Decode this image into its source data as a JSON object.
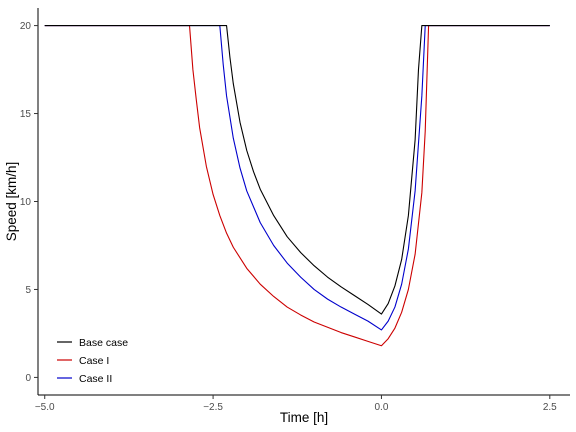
{
  "chart_data": {
    "type": "line",
    "title": "",
    "xlabel": "Time [h]",
    "ylabel": "Speed [km/h]",
    "xlim": [
      -5.1,
      2.8
    ],
    "ylim": [
      -1.0,
      21.0
    ],
    "xticks": [
      -5.0,
      -2.5,
      0.0,
      2.5
    ],
    "xtick_labels": [
      "−5.0",
      "−2.5",
      "0.0",
      "2.5"
    ],
    "yticks": [
      0,
      5,
      10,
      15,
      20
    ],
    "ytick_labels": [
      "0",
      "5",
      "10",
      "15",
      "20"
    ],
    "grid": false,
    "legend": {
      "position": "bottom-left",
      "entries": [
        "Base case",
        "Case I",
        "Case II"
      ]
    },
    "series": [
      {
        "name": "Base case",
        "color": "#000000",
        "x": [
          -5.0,
          -2.3,
          -2.25,
          -2.2,
          -2.1,
          -2.0,
          -1.9,
          -1.8,
          -1.6,
          -1.4,
          -1.2,
          -1.0,
          -0.8,
          -0.6,
          -0.4,
          -0.2,
          0.0,
          0.1,
          0.2,
          0.3,
          0.4,
          0.5,
          0.55,
          0.6,
          2.5
        ],
        "y": [
          20.0,
          20.0,
          18.2,
          16.7,
          14.5,
          12.9,
          11.7,
          10.7,
          9.2,
          8.0,
          7.1,
          6.35,
          5.7,
          5.15,
          4.65,
          4.15,
          3.6,
          4.2,
          5.2,
          6.7,
          9.2,
          13.5,
          17.5,
          20.0,
          20.0
        ]
      },
      {
        "name": "Case I",
        "color": "#cc0000",
        "x": [
          -5.0,
          -2.85,
          -2.8,
          -2.75,
          -2.7,
          -2.6,
          -2.5,
          -2.4,
          -2.3,
          -2.2,
          -2.0,
          -1.8,
          -1.6,
          -1.4,
          -1.2,
          -1.0,
          -0.8,
          -0.6,
          -0.4,
          -0.2,
          0.0,
          0.1,
          0.2,
          0.3,
          0.4,
          0.5,
          0.6,
          0.65,
          0.7,
          2.5
        ],
        "y": [
          20.0,
          20.0,
          17.5,
          15.8,
          14.2,
          12.0,
          10.4,
          9.2,
          8.2,
          7.4,
          6.2,
          5.3,
          4.6,
          4.0,
          3.55,
          3.15,
          2.85,
          2.55,
          2.3,
          2.05,
          1.8,
          2.2,
          2.8,
          3.7,
          5.0,
          7.0,
          10.5,
          14.0,
          20.0,
          20.0
        ]
      },
      {
        "name": "Case II",
        "color": "#0000cc",
        "x": [
          -5.0,
          -2.4,
          -2.35,
          -2.3,
          -2.2,
          -2.1,
          -2.0,
          -1.8,
          -1.6,
          -1.4,
          -1.2,
          -1.0,
          -0.8,
          -0.6,
          -0.4,
          -0.2,
          0.0,
          0.1,
          0.2,
          0.3,
          0.4,
          0.5,
          0.6,
          0.65,
          2.5
        ],
        "y": [
          20.0,
          20.0,
          17.8,
          16.0,
          13.6,
          11.9,
          10.6,
          8.8,
          7.5,
          6.5,
          5.7,
          5.0,
          4.45,
          4.0,
          3.6,
          3.2,
          2.7,
          3.2,
          4.0,
          5.3,
          7.3,
          10.6,
          16.0,
          20.0,
          20.0
        ]
      }
    ]
  }
}
